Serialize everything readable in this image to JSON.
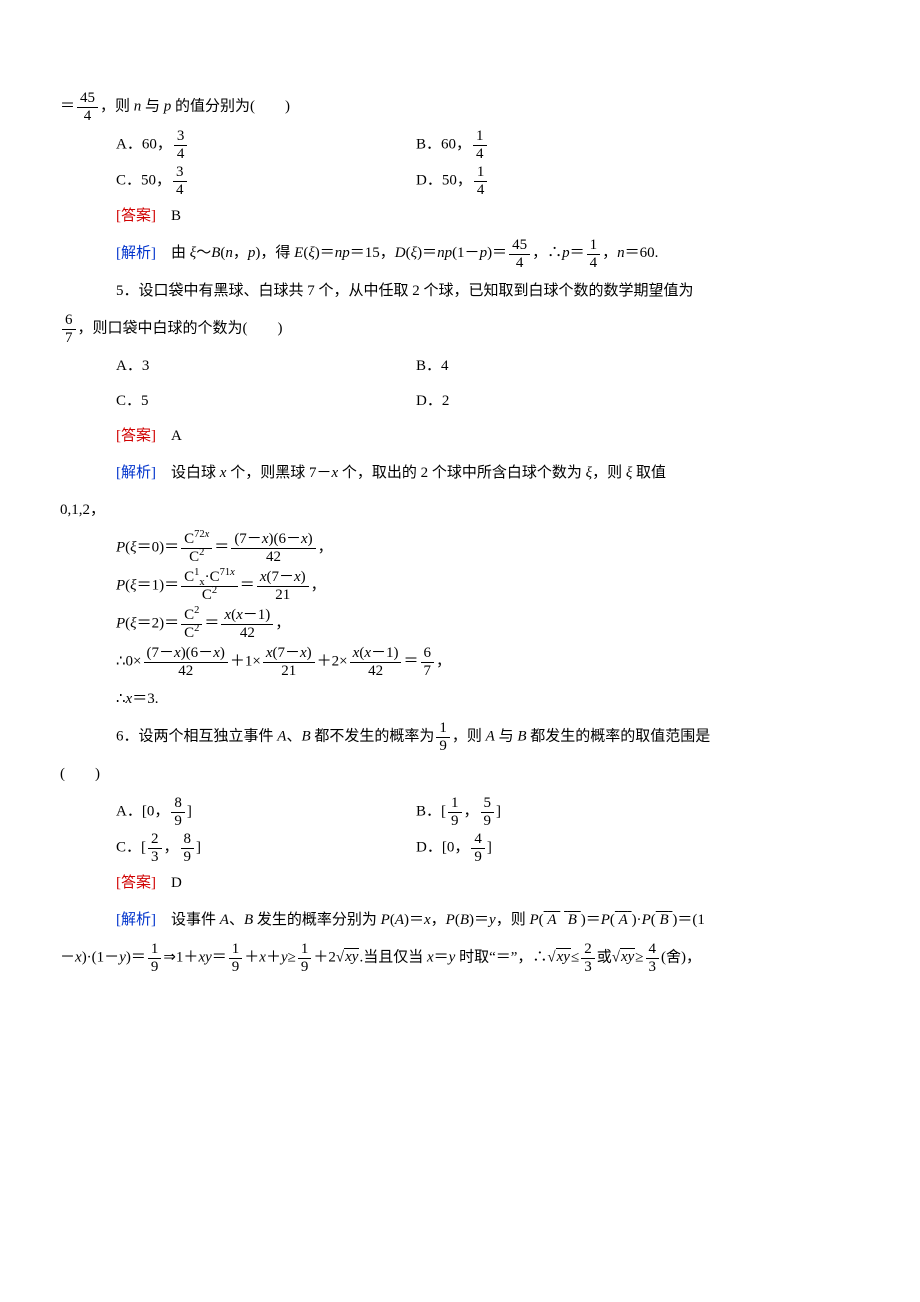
{
  "q4": {
    "stem_cont": "＝<span class='frac'><span class='num'>45</span><span class='den'>4</span></span>，则 <span class='it'>n</span> 与 <span class='it'>p</span> 的值分别为(　　)",
    "A": "A．60，<span class='frac'><span class='num'>3</span><span class='den'>4</span></span>",
    "B": "B．60，<span class='frac'><span class='num'>1</span><span class='den'>4</span></span>",
    "C": "C．50，<span class='frac'><span class='num'>3</span><span class='den'>4</span></span>",
    "D": "D．50，<span class='frac'><span class='num'>1</span><span class='den'>4</span></span>",
    "answer_label": "[答案]",
    "answer": "　B",
    "analysis_label": "[解析]",
    "analysis": "　由 <span class='it'>ξ</span>～<span class='it'>B</span>(<span class='it'>n</span>，<span class='it'>p</span>)，得 <span class='it'>E</span>(<span class='it'>ξ</span>)＝<span class='it'>np</span>＝15，<span class='it'>D</span>(<span class='it'>ξ</span>)＝<span class='it'>np</span>(1－<span class='it'>p</span>)＝<span class='frac'><span class='num'>45</span><span class='den'>4</span></span>，∴<span class='it'>p</span>＝<span class='frac'><span class='num'>1</span><span class='den'>4</span></span>，<span class='it'>n</span>＝60."
  },
  "q5": {
    "stem1": "5．设口袋中有黑球、白球共 7 个，从中任取 2 个球，已知取到白球个数的数学期望值为",
    "stem2": "<span class='frac'><span class='num'>6</span><span class='den'>7</span></span>，则口袋中白球的个数为(　　)",
    "A": "A．3",
    "B": "B．4",
    "C": "C．5",
    "D": "D．2",
    "answer_label": "[答案]",
    "answer": "　A",
    "analysis_label": "[解析]",
    "analysis_line1": "　设白球 <span class='it'>x</span> 个，则黑球 7－<span class='it'>x</span> 个，取出的 2 个球中所含白球个数为 <span class='it'>ξ</span>，则 <span class='it'>ξ</span> 取值",
    "analysis_line2": "0,1,2，",
    "p0": "<span class='it'>P</span>(<span class='it'>ξ</span>＝0)＝<span class='frac'><span class='num'>C<sup>7<span class='rm'>2</span><span class='it'>x</span></sup></span><span class='den'>C<sup>2</sup></span></span>＝<span class='frac'><span class='num'>(7－<span class='it'>x</span>)(6－<span class='it'>x</span>)</span><span class='den'>42</span></span>，",
    "p1": "<span class='it'>P</span>(<span class='it'>ξ</span>＝1)＝<span class='frac'><span class='num'>C<sup>1</sup><sub>x</sub>·C<sup>7<span class='rm'>1</span><span class='it'>x</span></sup></span><span class='den'>C<sup>2</sup></span></span>＝<span class='frac'><span class='num'><span class='it'>x</span>(7－<span class='it'>x</span>)</span><span class='den'>21</span></span>，",
    "p2": "<span class='it'>P</span>(<span class='it'>ξ</span>＝2)＝<span class='frac'><span class='num'>C<sup>2</sup></span><span class='den'>C<sup>2</sup></span></span>＝<span class='frac'><span class='num'><span class='it'>x</span>(<span class='it'>x</span>－1)</span><span class='den'>42</span></span>，",
    "expect": "∴0×<span class='frac'><span class='num'>(7－<span class='it'>x</span>)(6－<span class='it'>x</span>)</span><span class='den'>42</span></span>＋1×<span class='frac'><span class='num'><span class='it'>x</span>(7－<span class='it'>x</span>)</span><span class='den'>21</span></span>＋2×<span class='frac'><span class='num'><span class='it'>x</span>(<span class='it'>x</span>－1)</span><span class='den'>42</span></span>＝<span class='frac'><span class='num'>6</span><span class='den'>7</span></span>，",
    "result": "∴<span class='it'>x</span>＝3."
  },
  "q6": {
    "stem1": "6．设两个相互独立事件 <span class='it'>A</span>、<span class='it'>B</span> 都不发生的概率为<span class='frac'><span class='num'>1</span><span class='den'>9</span></span>，则 <span class='it'>A</span> 与 <span class='it'>B</span> 都发生的概率的取值范围是",
    "stem2": "(　　)",
    "A": "A．[0，<span class='frac'><span class='num'>8</span><span class='den'>9</span></span>]",
    "B": "B．[<span class='frac'><span class='num'>1</span><span class='den'>9</span></span>，<span class='frac'><span class='num'>5</span><span class='den'>9</span></span>]",
    "C": "C．[<span class='frac'><span class='num'>2</span><span class='den'>3</span></span>，<span class='frac'><span class='num'>8</span><span class='den'>9</span></span>]",
    "D": "D．[0，<span class='frac'><span class='num'>4</span><span class='den'>9</span></span>]",
    "answer_label": "[答案]",
    "answer": "　D",
    "analysis_label": "[解析]",
    "analysis_line1": "　设事件 <span class='it'>A</span>、<span class='it'>B</span> 发生的概率分别为 <span class='it'>P</span>(<span class='it'>A</span>)＝<span class='it'>x</span>，<span class='it'>P</span>(<span class='it'>B</span>)＝<span class='it'>y</span>，则 <span class='it'>P</span>(<span class='ovl'>&nbsp;<span class='it'>A</span>&nbsp;</span> <span class='ovl'>&nbsp;<span class='it'>B</span>&nbsp;</span>)＝<span class='it'>P</span>(<span class='ovl'>&nbsp;<span class='it'>A</span>&nbsp;</span>)·<span class='it'>P</span>(<span class='ovl'>&nbsp;<span class='it'>B</span>&nbsp;</span>)＝(1",
    "analysis_line2": "－<span class='it'>x</span>)·(1－<span class='it'>y</span>)＝<span class='frac'><span class='num'>1</span><span class='den'>9</span></span>⇒1＋<span class='it'>xy</span>＝<span class='frac'><span class='num'>1</span><span class='den'>9</span></span>＋<span class='it'>x</span>＋<span class='it'>y</span>≥<span class='frac'><span class='num'>1</span><span class='den'>9</span></span>＋2√<span class='sqrt'><span class='it'>xy</span></span>.当且仅当 <span class='it'>x</span>＝<span class='it'>y</span> 时取“＝”，∴√<span class='sqrt'><span class='it'>xy</span></span>≤<span class='frac'><span class='num'>2</span><span class='den'>3</span></span>或√<span class='sqrt'><span class='it'>xy</span></span>≥<span class='frac'><span class='num'>4</span><span class='den'>3</span></span>(舍)，"
  }
}
